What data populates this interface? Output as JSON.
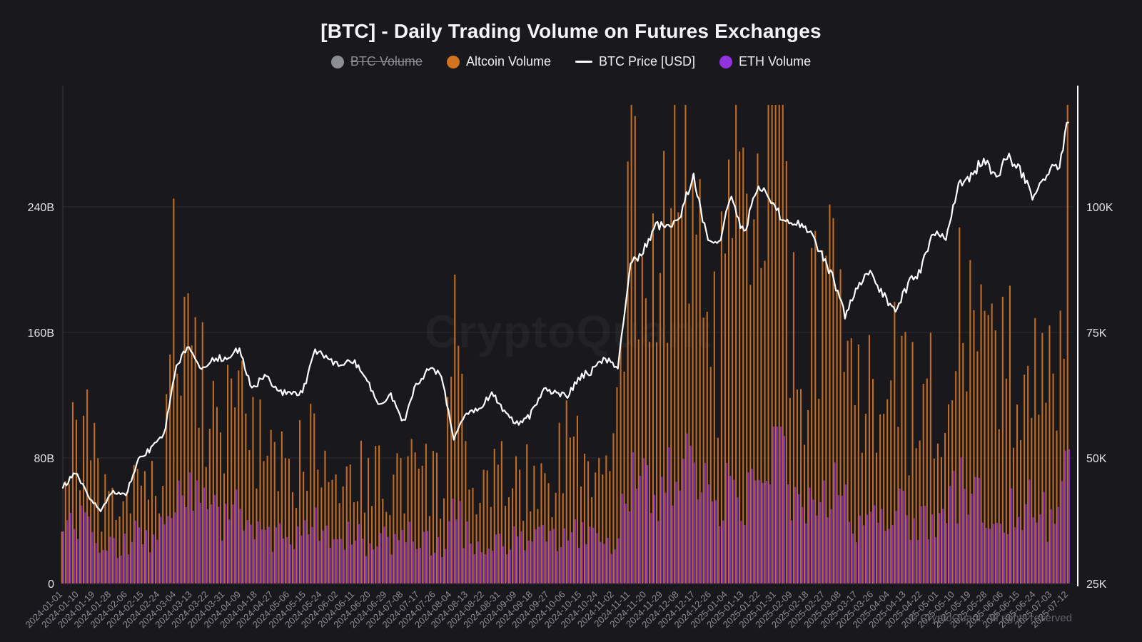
{
  "header": {
    "title": "[BTC] - Daily Trading Volume on Futures Exchanges"
  },
  "legend": {
    "items": [
      {
        "label": "BTC Volume",
        "symbol": "circle",
        "color": "#8d8d94",
        "disabled": true
      },
      {
        "label": "Altcoin Volume",
        "symbol": "circle",
        "color": "#d4731f",
        "disabled": false
      },
      {
        "label": "BTC Price [USD]",
        "symbol": "line",
        "color": "#ffffff",
        "disabled": false
      },
      {
        "label": "ETH Volume",
        "symbol": "circle",
        "color": "#9333e0",
        "disabled": false
      }
    ]
  },
  "watermark": {
    "center": "CryptoQuant",
    "footer": "© CryptoQuant. All rights reserved"
  },
  "colors": {
    "background": "#18181d",
    "grid": "rgba(255,255,255,0.08)",
    "left_axis_line": "rgba(255,255,255,0.14)",
    "right_axis_line": "#ffffff",
    "y_label": "#e2e2e6",
    "x_label": "#8d8d95",
    "altcoin_bar": "#c06c24",
    "eth_bar": "#7a2ed2",
    "price_line": "#ffffff"
  },
  "chart_data": {
    "type": "mixed-bar-line",
    "title": "[BTC] - Daily Trading Volume on Futures Exchanges",
    "left_axis": {
      "unit": "B (volume USD)",
      "tick_values": [
        0,
        80,
        160,
        240
      ],
      "tick_labels": [
        "0",
        "80B",
        "160B",
        "240B"
      ],
      "max": 317
    },
    "right_axis": {
      "unit": "K USD (BTC price)",
      "tick_values": [
        25,
        50,
        75,
        100
      ],
      "tick_labels": [
        "25K",
        "50K",
        "75K",
        "100K"
      ],
      "max": 124
    },
    "x_axis": {
      "start": "2024-01-01",
      "end": "2025-07-12",
      "total_days": 558,
      "tick_interval_days": 9,
      "tick_labels": [
        "2024-01-01",
        "2024-01-10",
        "2024-01-19",
        "2024-01-28",
        "2024-02-06",
        "2024-02-15",
        "2024-02-24",
        "2024-03-04",
        "2024-03-13",
        "2024-03-22",
        "2024-03-31",
        "2024-04-09",
        "2024-04-18",
        "2024-04-27",
        "2024-05-06",
        "2024-05-15",
        "2024-05-24",
        "2024-06-02",
        "2024-06-11",
        "2024-06-20",
        "2024-06-29",
        "2024-07-08",
        "2024-07-17",
        "2024-07-26",
        "2024-08-04",
        "2024-08-13",
        "2024-08-22",
        "2024-08-31",
        "2024-09-09",
        "2024-09-18",
        "2024-09-27",
        "2024-10-06",
        "2024-10-15",
        "2024-10-24",
        "2024-11-02",
        "2024-11-11",
        "2024-11-20",
        "2024-11-29",
        "2024-12-08",
        "2024-12-17",
        "2024-12-26",
        "2025-01-04",
        "2025-01-13",
        "2025-01-22",
        "2025-01-31",
        "2025-02-09",
        "2025-02-18",
        "2025-02-27",
        "2025-03-08",
        "2025-03-17",
        "2025-03-26",
        "2025-04-04",
        "2025-04-13",
        "2025-04-22",
        "2025-05-01",
        "2025-05-10",
        "2025-05-19",
        "2025-05-28",
        "2025-06-06",
        "2025-06-15",
        "2025-06-24",
        "2025-07-03",
        "2025-07-12"
      ]
    },
    "sample_day_index": [
      0,
      7,
      14,
      21,
      28,
      35,
      42,
      49,
      56,
      63,
      70,
      77,
      84,
      91,
      98,
      105,
      112,
      119,
      126,
      133,
      140,
      147,
      154,
      161,
      168,
      175,
      182,
      189,
      196,
      203,
      210,
      217,
      224,
      231,
      238,
      245,
      252,
      259,
      266,
      273,
      280,
      287,
      294,
      301,
      308,
      315,
      322,
      329,
      336,
      343,
      350,
      357,
      364,
      371,
      378,
      385,
      392,
      399,
      406,
      413,
      420,
      427,
      434,
      441,
      448,
      455,
      462,
      469,
      476,
      483,
      490,
      497,
      504,
      511,
      518,
      525,
      532,
      539,
      546,
      553,
      558
    ],
    "series": [
      {
        "name": "BTC Volume",
        "axis": "left",
        "unit": "B",
        "visible": false,
        "values": []
      },
      {
        "name": "Altcoin Volume",
        "axis": "left",
        "unit": "B",
        "visible": true,
        "values": [
          45,
          103,
          95,
          55,
          45,
          50,
          65,
          55,
          75,
          195,
          170,
          120,
          105,
          95,
          140,
          110,
          75,
          70,
          65,
          80,
          125,
          75,
          70,
          75,
          65,
          70,
          55,
          75,
          70,
          65,
          60,
          155,
          70,
          55,
          60,
          65,
          80,
          60,
          70,
          65,
          105,
          75,
          70,
          65,
          90,
          250,
          220,
          185,
          230,
          290,
          240,
          185,
          150,
          210,
          230,
          200,
          290,
          280,
          150,
          130,
          185,
          185,
          150,
          110,
          120,
          110,
          160,
          110,
          120,
          115,
          120,
          200,
          150,
          145,
          130,
          145,
          140,
          155,
          115,
          130,
          230
        ]
      },
      {
        "name": "BTC Price [USD]",
        "axis": "right",
        "unit": "K",
        "visible": true,
        "values": [
          44.2,
          47.0,
          42.6,
          39.6,
          43.3,
          42.7,
          49.9,
          51.8,
          54.5,
          68.3,
          72.1,
          67.6,
          69.9,
          69.7,
          71.6,
          63.4,
          66.8,
          63.1,
          63.2,
          62.9,
          71.4,
          69.4,
          68.8,
          69.5,
          66.5,
          60.3,
          62.8,
          57.0,
          64.8,
          67.5,
          66.8,
          54.0,
          58.7,
          59.5,
          62.9,
          59.1,
          57.0,
          58.2,
          63.3,
          63.3,
          62.2,
          66.1,
          67.4,
          69.9,
          68.0,
          88.7,
          91.0,
          96.0,
          95.9,
          99.0,
          106.1,
          94.3,
          92.6,
          102.1,
          94.5,
          104.0,
          102.1,
          97.7,
          97.4,
          95.8,
          91.4,
          86.0,
          78.6,
          84.0,
          87.5,
          82.5,
          79.2,
          84.5,
          87.5,
          95.0,
          94.2,
          104.1,
          106.4,
          109.4,
          105.9,
          110.2,
          106.8,
          101.6,
          107.2,
          108.1,
          117.5
        ]
      },
      {
        "name": "ETH Volume",
        "axis": "left",
        "unit": "B",
        "visible": true,
        "values": [
          28,
          45,
          38,
          30,
          25,
          28,
          32,
          30,
          40,
          67,
          60,
          50,
          45,
          40,
          50,
          42,
          32,
          30,
          28,
          32,
          48,
          32,
          30,
          32,
          28,
          30,
          25,
          32,
          30,
          28,
          26,
          48,
          30,
          24,
          26,
          28,
          32,
          26,
          30,
          28,
          36,
          30,
          28,
          26,
          35,
          75,
          65,
          55,
          70,
          90,
          75,
          60,
          50,
          65,
          55,
          60,
          85,
          95,
          50,
          45,
          60,
          60,
          50,
          38,
          40,
          38,
          55,
          40,
          42,
          40,
          42,
          65,
          55,
          50,
          45,
          50,
          48,
          55,
          40,
          45,
          80
        ]
      }
    ]
  }
}
